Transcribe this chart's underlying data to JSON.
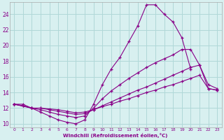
{
  "xlabel": "Windchill (Refroidissement éolien,°C)",
  "bg_color": "#d8f0f0",
  "grid_color": "#b0d8d8",
  "line_color": "#880088",
  "xlim": [
    -0.5,
    23.5
  ],
  "ylim": [
    9.5,
    25.5
  ],
  "xticks": [
    0,
    1,
    2,
    3,
    4,
    5,
    6,
    7,
    8,
    9,
    10,
    11,
    12,
    13,
    14,
    15,
    16,
    17,
    18,
    19,
    20,
    21,
    22,
    23
  ],
  "yticks": [
    10,
    12,
    14,
    16,
    18,
    20,
    22,
    24
  ],
  "line1_x": [
    0,
    1,
    2,
    3,
    4,
    5,
    6,
    7,
    8,
    9,
    10,
    11,
    12,
    13,
    14,
    15,
    16,
    17,
    18,
    19,
    20,
    21,
    22,
    23
  ],
  "line1_y": [
    12.5,
    12.5,
    12.0,
    11.5,
    11.0,
    10.5,
    10.2,
    10.0,
    10.5,
    12.5,
    15.0,
    17.0,
    18.5,
    20.5,
    22.5,
    25.2,
    25.2,
    24.0,
    23.0,
    21.0,
    17.0,
    null,
    null,
    null
  ],
  "line2_x": [
    0,
    1,
    2,
    3,
    4,
    5,
    6,
    7,
    8,
    9,
    10,
    11,
    12,
    13,
    14,
    15,
    16,
    17,
    18,
    19,
    20,
    21,
    22,
    23
  ],
  "line2_y": [
    12.5,
    12.3,
    12.0,
    11.8,
    11.5,
    11.2,
    11.0,
    10.8,
    11.0,
    12.0,
    13.2,
    14.2,
    15.0,
    15.8,
    16.5,
    17.2,
    17.8,
    18.3,
    18.8,
    19.5,
    19.5,
    17.5,
    15.0,
    14.5
  ],
  "line3_x": [
    0,
    1,
    2,
    3,
    4,
    5,
    6,
    7,
    8,
    9,
    10,
    11,
    12,
    13,
    14,
    15,
    16,
    17,
    18,
    19,
    20,
    21,
    22,
    23
  ],
  "line3_y": [
    12.5,
    12.3,
    12.0,
    12.0,
    11.8,
    11.6,
    11.4,
    11.2,
    11.3,
    11.8,
    12.3,
    12.8,
    13.3,
    13.8,
    14.3,
    14.7,
    15.2,
    15.7,
    16.2,
    16.7,
    17.2,
    17.5,
    14.5,
    14.3
  ],
  "line4_x": [
    0,
    2,
    3,
    4,
    5,
    6,
    7,
    8,
    9,
    10,
    11,
    12,
    13,
    14,
    15,
    16,
    17,
    18,
    19,
    20,
    21,
    22,
    23
  ],
  "line4_y": [
    12.5,
    12.0,
    12.0,
    11.9,
    11.8,
    11.6,
    11.4,
    11.5,
    11.8,
    12.2,
    12.5,
    12.9,
    13.2,
    13.6,
    14.0,
    14.3,
    14.7,
    15.0,
    15.4,
    15.8,
    16.2,
    14.5,
    14.3
  ]
}
